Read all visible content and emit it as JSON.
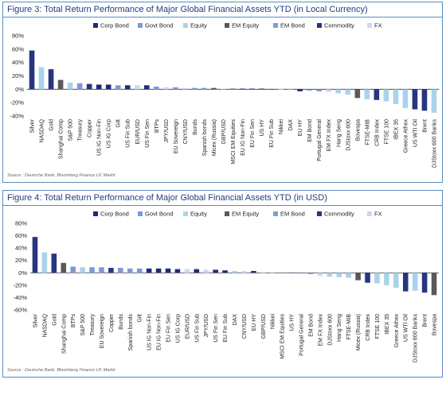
{
  "colors": {
    "Corp Bond": "#1f2a7a",
    "Govt Bond": "#7f98d6",
    "Equity": "#a9d3ea",
    "EM Equity": "#595959",
    "EM Bond": "#7da3cc",
    "Commodity": "#28357f",
    "FX": "#c9daf2",
    "border": "#5b8cc0",
    "title": "#1f3f7a"
  },
  "figures": [
    {
      "title": "Figure 3: Total Return Performance of Major Global Financial Assets YTD (in Local Currency)",
      "source": "Source : Deutsche Bank, Bloomberg Finance LP, Markit"
    },
    {
      "title": "Figure 4: Total Return Performance of Major Global Financial Assets YTD (in USD)",
      "source": "Source : Deutsche Bank, Bloomberg Finance LP, Markit"
    }
  ],
  "chart_data": [
    {
      "type": "bar",
      "title": "Figure 3: Total Return Performance of Major Global Financial Assets YTD (in Local Currency)",
      "ylim": [
        -40,
        80
      ],
      "yticks": [
        -40,
        -20,
        0,
        20,
        40,
        60,
        80
      ],
      "ytick_suffix": "%",
      "grid": false,
      "legend": [
        "Corp Bond",
        "Govt Bond",
        "Equity",
        "EM Equity",
        "EM Bond",
        "Commodity",
        "FX"
      ],
      "legend_position": "top",
      "categories": [
        "Silver",
        "NASDAQ",
        "Gold",
        "Shanghai Comp",
        "S&P 500",
        "Treasury",
        "Copper",
        "US IG Non-Fin",
        "US IG Corp",
        "Gilt",
        "US Fin Sub",
        "EUR/USD",
        "US Fin Sen",
        "BTPs",
        "JPY/USD",
        "EU Sovereign",
        "CNY/USD",
        "Bunds",
        "Spanish bonds",
        "Micex (Russia)",
        "GBP/USD",
        "MSCI EM Equities",
        "EU IG Non-Fin",
        "EU Fin Sen",
        "US HY",
        "EU Fin Sub",
        "Nikkei",
        "DAX",
        "EU HY",
        "EM Bond",
        "Portugal General",
        "EM FX Index",
        "Hang Seng",
        "DJStoxx 600",
        "Bovespa",
        "FTSE-MIB",
        "CRB Index",
        "FTSE 100",
        "IBEX 35",
        "Greece Athex",
        "US WTI Oil",
        "Brent",
        "DJStoxx 600 Banks"
      ],
      "values": [
        58,
        33,
        30,
        14,
        10,
        9,
        8,
        7,
        7,
        6,
        6,
        6,
        6,
        4,
        3,
        3,
        2,
        2,
        2,
        2,
        1,
        1,
        1,
        1,
        1,
        0.5,
        0.5,
        -0.5,
        -3,
        -2,
        -3,
        -4,
        -6,
        -8,
        -13,
        -15,
        -16,
        -18,
        -22,
        -28,
        -30,
        -32,
        -35
      ],
      "groups": [
        "Commodity",
        "Equity",
        "Commodity",
        "EM Equity",
        "Equity",
        "Govt Bond",
        "Commodity",
        "Corp Bond",
        "Corp Bond",
        "Govt Bond",
        "Corp Bond",
        "FX",
        "Corp Bond",
        "Govt Bond",
        "FX",
        "Govt Bond",
        "FX",
        "Govt Bond",
        "Govt Bond",
        "EM Equity",
        "FX",
        "EM Equity",
        "Corp Bond",
        "Corp Bond",
        "Corp Bond",
        "Corp Bond",
        "Equity",
        "Equity",
        "Corp Bond",
        "EM Bond",
        "Govt Bond",
        "FX",
        "Equity",
        "Equity",
        "EM Equity",
        "Equity",
        "Commodity",
        "Equity",
        "Equity",
        "Equity",
        "Commodity",
        "Commodity",
        "Equity"
      ]
    },
    {
      "type": "bar",
      "title": "Figure 4: Total Return Performance of Major Global Financial Assets YTD (in USD)",
      "ylim": [
        -60,
        80
      ],
      "yticks": [
        -60,
        -40,
        -20,
        0,
        20,
        40,
        60,
        80
      ],
      "ytick_suffix": "%",
      "grid": false,
      "legend": [
        "Corp Bond",
        "Govt Bond",
        "Equity",
        "EM Equity",
        "EM Bond",
        "Commodity",
        "FX"
      ],
      "legend_position": "top",
      "categories": [
        "Silver",
        "NASDAQ",
        "Gold",
        "Shanghai Comp",
        "BTPs",
        "S&P 500",
        "Treasury",
        "EU Sovereign",
        "Copper",
        "Bunds",
        "Spanish bonds",
        "Gilt",
        "US IG Non-Fin",
        "EU IG Non-Fin",
        "EU Fin Sen",
        "US IG Corp",
        "EUR/USD",
        "US Fin Sub",
        "JPY/USD",
        "US Fin Sen",
        "EU Fin Sub",
        "DAX",
        "CNY/USD",
        "EU HY",
        "GBP/USD",
        "Nikkei",
        "MSCI EM Equities",
        "US HY",
        "Portugal General",
        "EM Bond",
        "EM FX Index",
        "DJStoxx 600",
        "Hang Seng",
        "FTSE-MIB",
        "Micex (Russia)",
        "CRB Index",
        "FTSE 100",
        "IBEX 35",
        "Greece Athex",
        "US WTI Oil",
        "DJStoxx 600 Banks",
        "Brent",
        "Bovespa"
      ],
      "values": [
        58,
        33,
        31,
        16,
        10,
        9,
        9,
        9,
        8,
        8,
        7,
        7,
        7,
        7,
        7,
        6,
        6,
        6,
        5,
        5,
        4,
        3,
        3,
        3,
        1,
        1,
        0.5,
        0.5,
        -1,
        -2,
        -5,
        -6,
        -7,
        -8,
        -12,
        -16,
        -17,
        -20,
        -24,
        -30,
        -29,
        -32,
        -36
      ],
      "groups": [
        "Commodity",
        "Equity",
        "Commodity",
        "EM Equity",
        "Govt Bond",
        "Equity",
        "Govt Bond",
        "Govt Bond",
        "Commodity",
        "Govt Bond",
        "Govt Bond",
        "Govt Bond",
        "Corp Bond",
        "Corp Bond",
        "Corp Bond",
        "Corp Bond",
        "FX",
        "Corp Bond",
        "FX",
        "Corp Bond",
        "Corp Bond",
        "Equity",
        "FX",
        "Corp Bond",
        "FX",
        "Equity",
        "EM Equity",
        "Corp Bond",
        "Govt Bond",
        "EM Bond",
        "FX",
        "Equity",
        "Equity",
        "Equity",
        "EM Equity",
        "Commodity",
        "Equity",
        "Equity",
        "Equity",
        "Commodity",
        "Equity",
        "Commodity",
        "EM Equity"
      ]
    }
  ]
}
